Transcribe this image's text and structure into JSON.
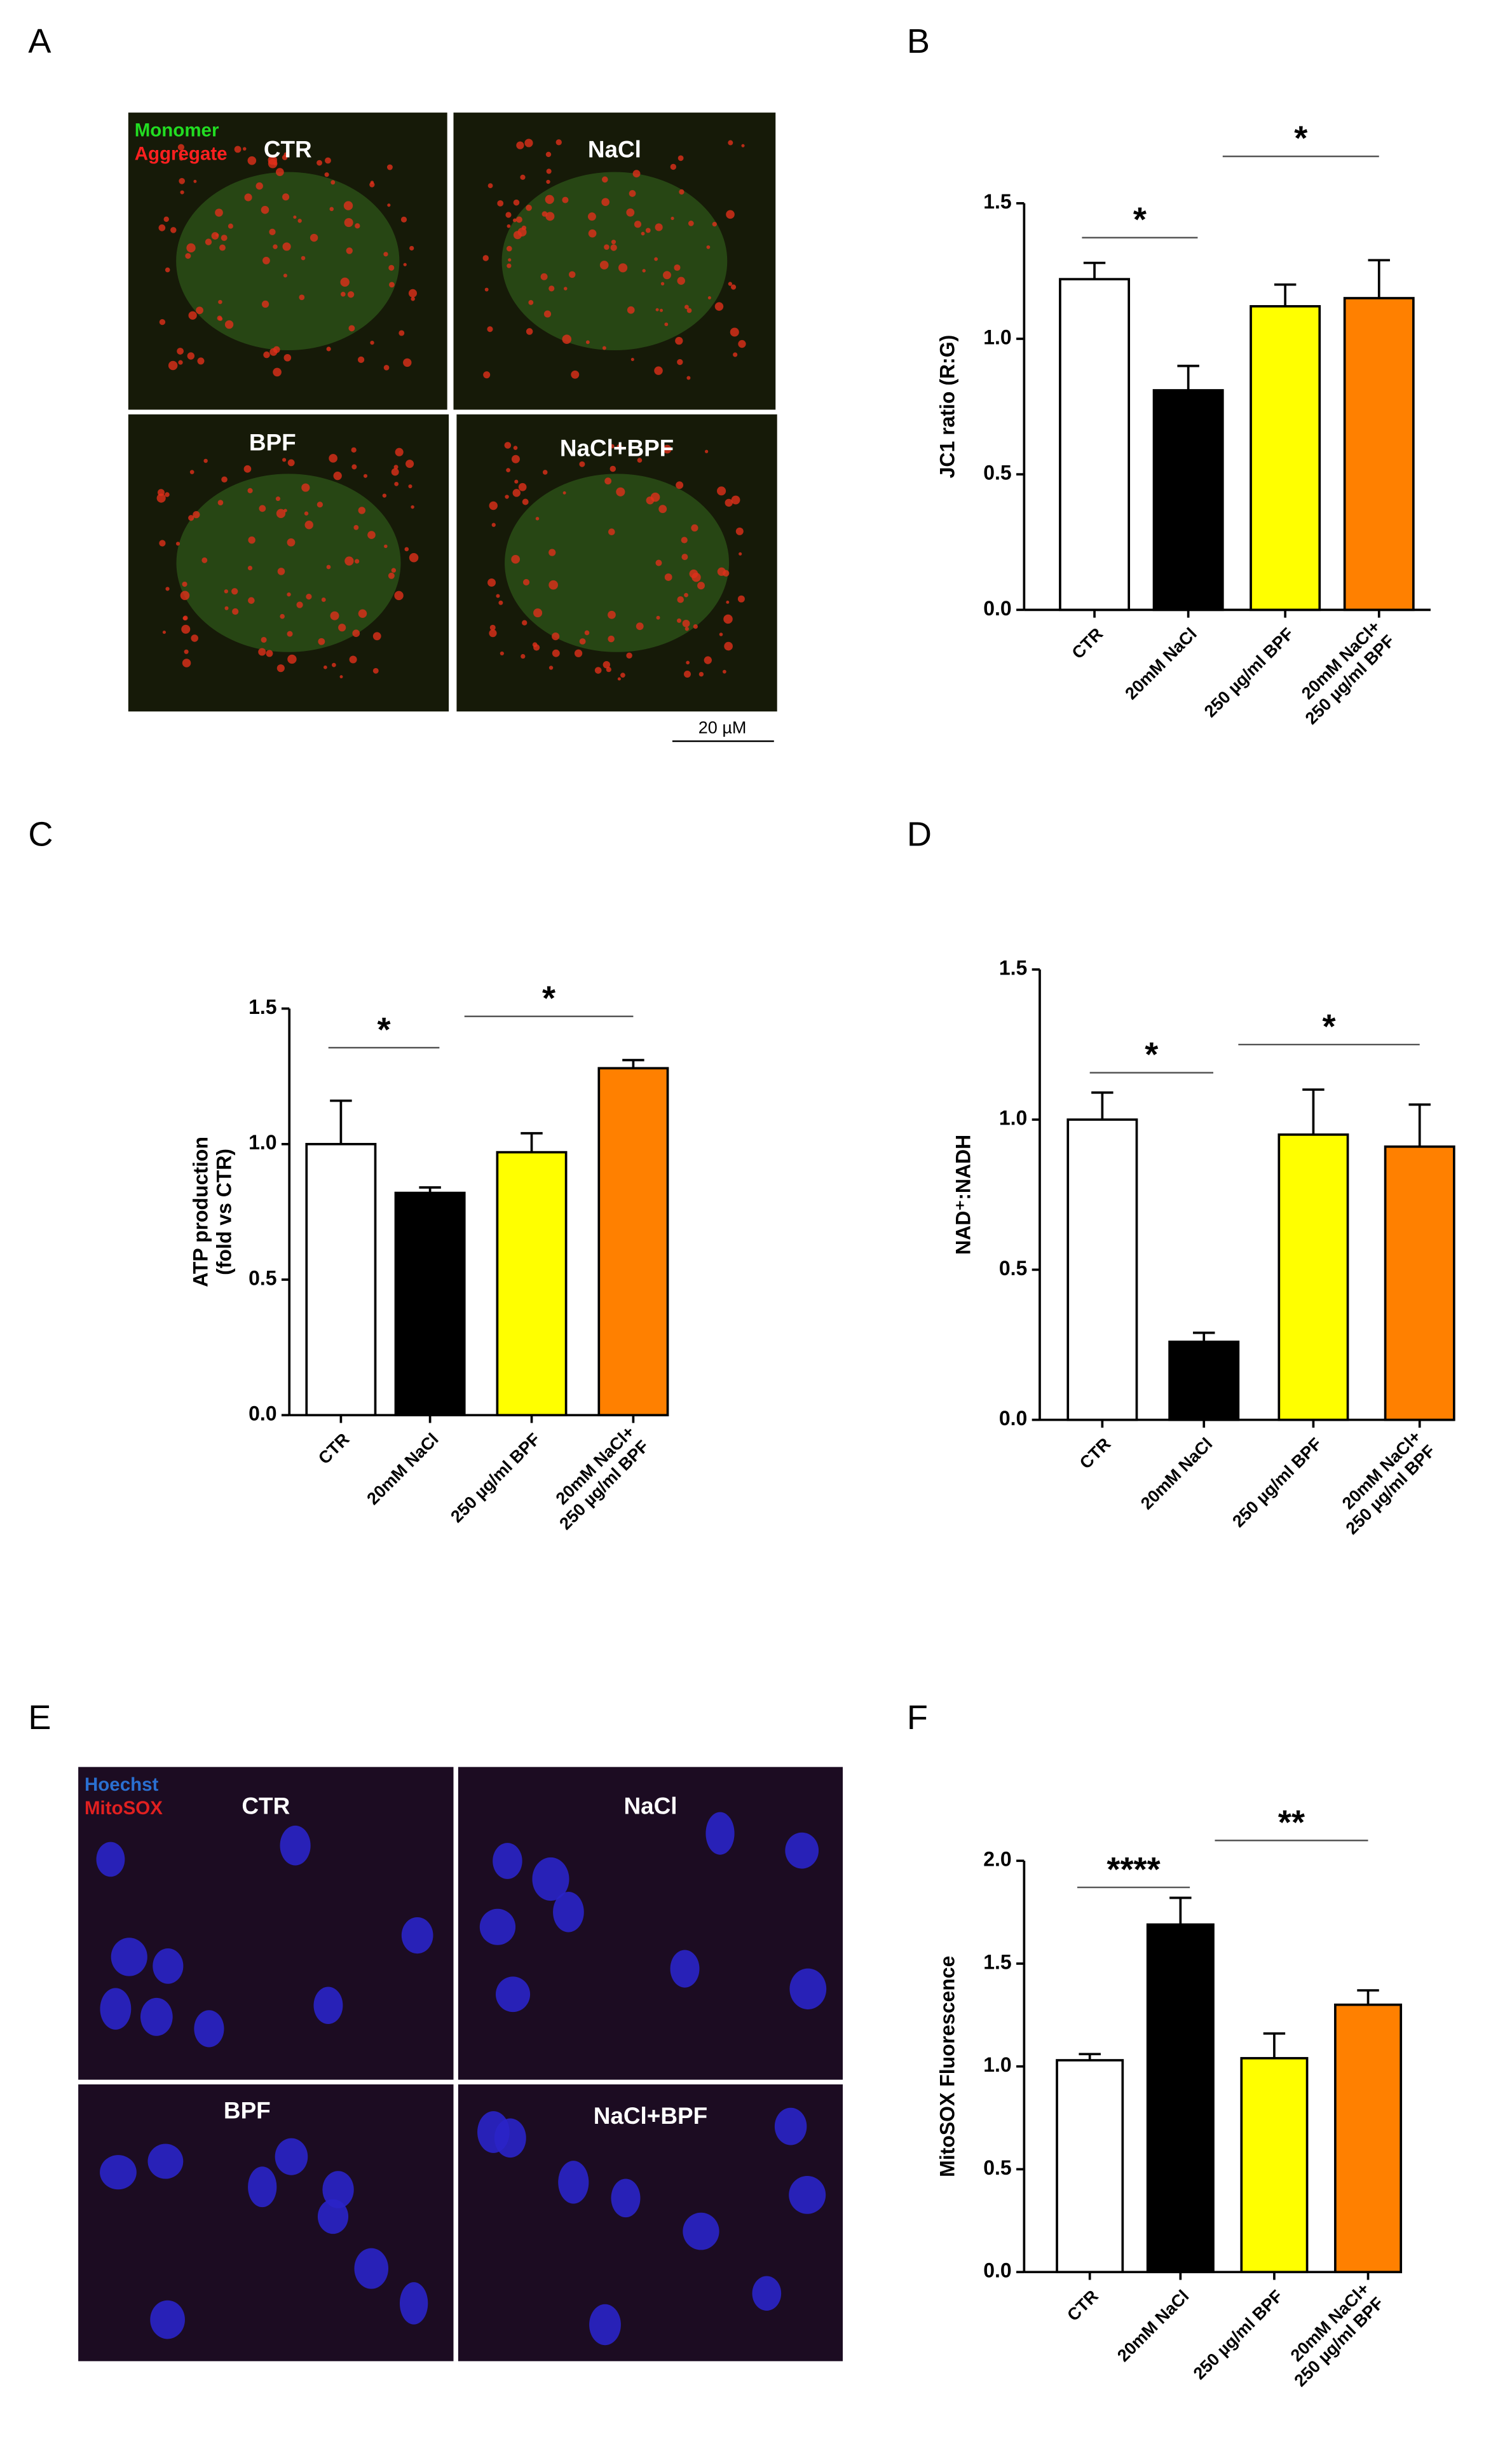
{
  "figure_panels": [
    {
      "panel": "A",
      "channels": [
        {
          "name": "Monomer",
          "color": "#22dd22"
        },
        {
          "name": "Aggregate",
          "color": "#ff2020"
        }
      ],
      "conditions": [
        "CTR",
        "NaCl",
        "BPF",
        "NaCl+BPF"
      ],
      "scale_bar": "20 µM"
    },
    {
      "panel": "E",
      "channels": [
        {
          "name": "Hoechst",
          "color": "#2a6fd0"
        },
        {
          "name": "MitoSOX",
          "color": "#e02020"
        }
      ],
      "conditions": [
        "CTR",
        "NaCl",
        "BPF",
        "NaCl+BPF"
      ]
    }
  ],
  "chart_data": [
    {
      "type": "bar",
      "panel": "B",
      "ylabel": "JC1 ratio (R:G)",
      "categories": [
        "CTR",
        "20mM NaCl",
        "250 µg/ml BPF",
        "20mM NaCl+\n250 µg/ml BPF"
      ],
      "values": [
        1.22,
        0.81,
        1.12,
        1.15
      ],
      "errors": [
        0.06,
        0.09,
        0.08,
        0.14
      ],
      "colors": [
        "#ffffff",
        "#000000",
        "#ffff00",
        "#ff8000"
      ],
      "ylim": [
        0,
        1.5
      ],
      "yticks": [
        {
          "value": 0,
          "label": "0.0"
        },
        {
          "value": 0.5,
          "label": "0.5"
        },
        {
          "value": 1,
          "label": "1.0"
        },
        {
          "value": 1.5,
          "label": "1.5"
        }
      ],
      "annotations": [
        {
          "text": "*",
          "from": "CTR",
          "to": "20mM NaCl"
        },
        {
          "text": "*",
          "from": "20mM NaCl",
          "to": "20mM NaCl+\n250 µg/ml BPF"
        }
      ]
    },
    {
      "type": "bar",
      "panel": "C",
      "ylabel": "ATP production\n(fold vs CTR)",
      "categories": [
        "CTR",
        "20mM NaCl",
        "250 µg/ml BPF",
        "20mM NaCl+\n250 µg/ml BPF"
      ],
      "values": [
        1.0,
        0.82,
        0.97,
        1.28
      ],
      "errors": [
        0.16,
        0.02,
        0.07,
        0.03
      ],
      "colors": [
        "#ffffff",
        "#000000",
        "#ffff00",
        "#ff8000"
      ],
      "ylim": [
        0,
        1.5
      ],
      "yticks": [
        {
          "value": 0,
          "label": "0.0"
        },
        {
          "value": 0.5,
          "label": "0.5"
        },
        {
          "value": 1,
          "label": "1.0"
        },
        {
          "value": 1.5,
          "label": "1.5"
        }
      ],
      "annotations": [
        {
          "text": "*",
          "from": "CTR",
          "to": "20mM NaCl"
        },
        {
          "text": "*",
          "from": "20mM NaCl",
          "to": "20mM NaCl+\n250 µg/ml BPF"
        }
      ]
    },
    {
      "type": "bar",
      "panel": "D",
      "ylabel": "NAD⁺:NADH",
      "categories": [
        "CTR",
        "20mM NaCl",
        "250 µg/ml BPF",
        "20mM NaCl+\n250 µg/ml BPF"
      ],
      "values": [
        1.0,
        0.26,
        0.95,
        0.91
      ],
      "errors": [
        0.09,
        0.03,
        0.15,
        0.14
      ],
      "colors": [
        "#ffffff",
        "#000000",
        "#ffff00",
        "#ff8000"
      ],
      "ylim": [
        0,
        1.5
      ],
      "yticks": [
        {
          "value": 0,
          "label": "0.0"
        },
        {
          "value": 0.5,
          "label": "0.5"
        },
        {
          "value": 1,
          "label": "1.0"
        },
        {
          "value": 1.5,
          "label": "1.5"
        }
      ],
      "annotations": [
        {
          "text": "*",
          "from": "CTR",
          "to": "20mM NaCl"
        },
        {
          "text": "*",
          "from": "20mM NaCl",
          "to": "20mM NaCl+\n250 µg/ml BPF"
        }
      ]
    },
    {
      "type": "bar",
      "panel": "F",
      "ylabel": "MitoSOX Fluorescence",
      "categories": [
        "CTR",
        "20mM NaCl",
        "250 µg/ml BPF",
        "20mM NaCl+\n250 µg/ml BPF"
      ],
      "values": [
        1.03,
        1.69,
        1.04,
        1.3
      ],
      "errors": [
        0.03,
        0.13,
        0.12,
        0.07
      ],
      "colors": [
        "#ffffff",
        "#000000",
        "#ffff00",
        "#ff8000"
      ],
      "ylim": [
        0,
        2
      ],
      "yticks": [
        {
          "value": 0,
          "label": "0.0"
        },
        {
          "value": 0.5,
          "label": "0.5"
        },
        {
          "value": 1,
          "label": "1.0"
        },
        {
          "value": 1.5,
          "label": "1.5"
        },
        {
          "value": 2,
          "label": "2.0"
        }
      ],
      "annotations": [
        {
          "text": "****",
          "from": "CTR",
          "to": "20mM NaCl"
        },
        {
          "text": "**",
          "from": "20mM NaCl",
          "to": "20mM NaCl+\n250 µg/ml BPF"
        }
      ]
    }
  ]
}
